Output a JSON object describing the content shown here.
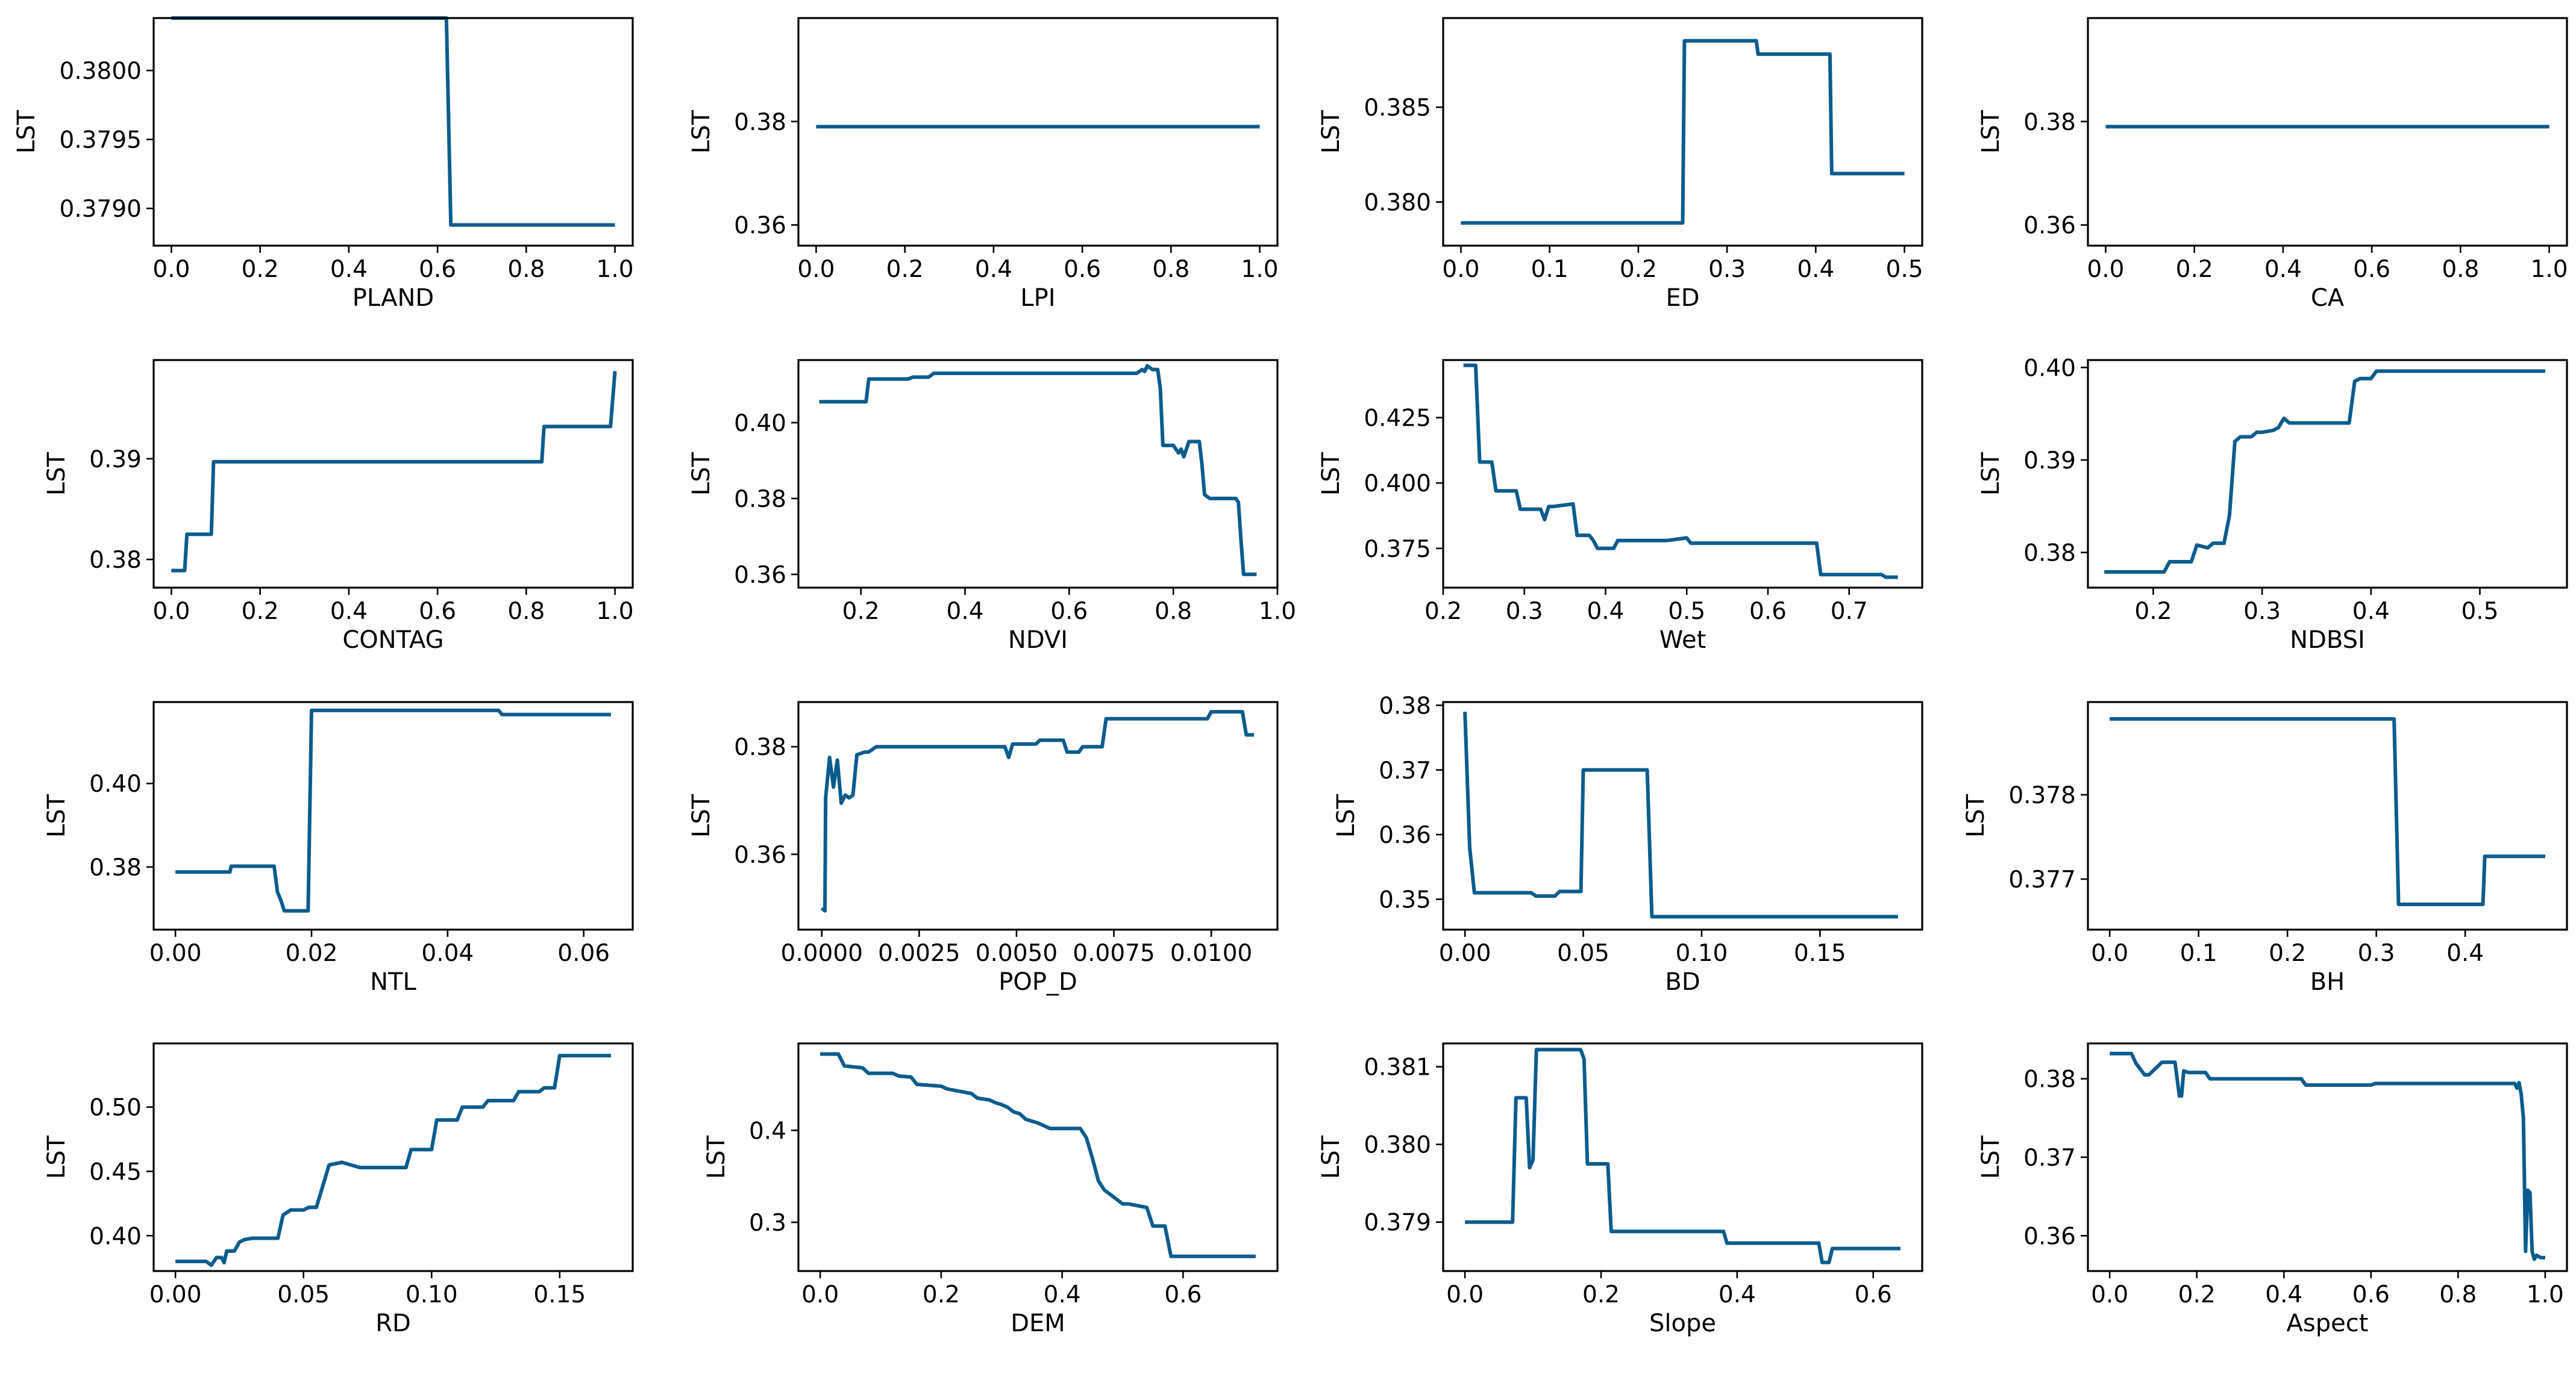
{
  "style": {
    "line_color": "#0b5c8e",
    "background": "#ffffff"
  },
  "chart_data": [
    {
      "type": "line",
      "xlabel": "PLAND",
      "ylabel": "LST",
      "xlim": [
        -0.04,
        1.04
      ],
      "ylim": [
        0.37873,
        0.38038
      ],
      "xticks": [
        0,
        0.2,
        0.4,
        0.6,
        0.8,
        1.0
      ],
      "xtick_labels": [
        "0.0",
        "0.2",
        "0.4",
        "0.6",
        "0.8",
        "1.0"
      ],
      "yticks": [
        0.379,
        0.3795,
        0.38
      ],
      "ytick_labels": [
        "0.3790",
        "0.3795",
        "0.3800"
      ],
      "x": [
        0,
        0.62,
        0.63,
        1.0
      ],
      "y": [
        0.38038,
        0.38038,
        0.37888,
        0.37888
      ]
    },
    {
      "type": "line",
      "xlabel": "LPI",
      "ylabel": "LST",
      "xlim": [
        -0.04,
        1.04
      ],
      "ylim": [
        0.356,
        0.4
      ],
      "xticks": [
        0,
        0.2,
        0.4,
        0.6,
        0.8,
        1.0
      ],
      "xtick_labels": [
        "0.0",
        "0.2",
        "0.4",
        "0.6",
        "0.8",
        "1.0"
      ],
      "yticks": [
        0.36,
        0.38
      ],
      "ytick_labels": [
        "0.36",
        "0.38"
      ],
      "x": [
        0,
        1.0
      ],
      "y": [
        0.379,
        0.379
      ]
    },
    {
      "type": "line",
      "xlabel": "ED",
      "ylabel": "LST",
      "xlim": [
        -0.02,
        0.52
      ],
      "ylim": [
        0.3777,
        0.3897
      ],
      "xticks": [
        0,
        0.1,
        0.2,
        0.3,
        0.4,
        0.5
      ],
      "xtick_labels": [
        "0.0",
        "0.1",
        "0.2",
        "0.3",
        "0.4",
        "0.5"
      ],
      "yticks": [
        0.38,
        0.385
      ],
      "ytick_labels": [
        "0.380",
        "0.385"
      ],
      "x": [
        0,
        0.25,
        0.252,
        0.333,
        0.335,
        0.416,
        0.418,
        0.5
      ],
      "y": [
        0.3789,
        0.3789,
        0.3885,
        0.3885,
        0.3878,
        0.3878,
        0.3815,
        0.3815
      ]
    },
    {
      "type": "line",
      "xlabel": "CA",
      "ylabel": "LST",
      "xlim": [
        -0.04,
        1.04
      ],
      "ylim": [
        0.356,
        0.4
      ],
      "xticks": [
        0,
        0.2,
        0.4,
        0.6,
        0.8,
        1.0
      ],
      "xtick_labels": [
        "0.0",
        "0.2",
        "0.4",
        "0.6",
        "0.8",
        "1.0"
      ],
      "yticks": [
        0.36,
        0.38
      ],
      "ytick_labels": [
        "0.36",
        "0.38"
      ],
      "x": [
        0,
        1.0
      ],
      "y": [
        0.379,
        0.379
      ]
    },
    {
      "type": "line",
      "xlabel": "CONTAG",
      "ylabel": "LST",
      "xlim": [
        -0.04,
        1.04
      ],
      "ylim": [
        0.3772,
        0.3998
      ],
      "xticks": [
        0,
        0.2,
        0.4,
        0.6,
        0.8,
        1.0
      ],
      "xtick_labels": [
        "0.0",
        "0.2",
        "0.4",
        "0.6",
        "0.8",
        "1.0"
      ],
      "yticks": [
        0.38,
        0.39
      ],
      "ytick_labels": [
        "0.38",
        "0.39"
      ],
      "x": [
        0,
        0.03,
        0.035,
        0.09,
        0.095,
        0.835,
        0.84,
        0.99,
        1.0
      ],
      "y": [
        0.3789,
        0.3789,
        0.3825,
        0.3825,
        0.3897,
        0.3897,
        0.3932,
        0.3932,
        0.3987
      ]
    },
    {
      "type": "line",
      "xlabel": "NDVI",
      "ylabel": "LST",
      "xlim": [
        0.08,
        1.0
      ],
      "ylim": [
        0.3565,
        0.4165
      ],
      "xticks": [
        0.2,
        0.4,
        0.6,
        0.8,
        1.0
      ],
      "xtick_labels": [
        "0.2",
        "0.4",
        "0.6",
        "0.8",
        "1.0"
      ],
      "yticks": [
        0.36,
        0.38,
        0.4
      ],
      "ytick_labels": [
        "0.36",
        "0.38",
        "0.40"
      ],
      "x": [
        0.12,
        0.21,
        0.215,
        0.29,
        0.3,
        0.33,
        0.34,
        0.73,
        0.74,
        0.745,
        0.75,
        0.76,
        0.77,
        0.775,
        0.78,
        0.8,
        0.81,
        0.815,
        0.82,
        0.83,
        0.84,
        0.85,
        0.855,
        0.86,
        0.87,
        0.9,
        0.91,
        0.92,
        0.925,
        0.93,
        0.935,
        0.94,
        0.96
      ],
      "y": [
        0.4055,
        0.4055,
        0.4115,
        0.4115,
        0.412,
        0.412,
        0.413,
        0.413,
        0.414,
        0.4135,
        0.415,
        0.414,
        0.414,
        0.409,
        0.394,
        0.394,
        0.392,
        0.393,
        0.391,
        0.395,
        0.395,
        0.395,
        0.389,
        0.381,
        0.38,
        0.38,
        0.38,
        0.38,
        0.379,
        0.369,
        0.36,
        0.36,
        0.36
      ]
    },
    {
      "type": "line",
      "xlabel": "Wet",
      "ylabel": "LST",
      "xlim": [
        0.2,
        0.79
      ],
      "ylim": [
        0.36,
        0.447
      ],
      "xticks": [
        0.2,
        0.3,
        0.4,
        0.5,
        0.6,
        0.7
      ],
      "xtick_labels": [
        "0.2",
        "0.3",
        "0.4",
        "0.5",
        "0.6",
        "0.7"
      ],
      "yticks": [
        0.375,
        0.4,
        0.425
      ],
      "ytick_labels": [
        "0.375",
        "0.400",
        "0.425"
      ],
      "x": [
        0.225,
        0.24,
        0.245,
        0.26,
        0.265,
        0.29,
        0.295,
        0.32,
        0.325,
        0.33,
        0.335,
        0.36,
        0.365,
        0.38,
        0.385,
        0.39,
        0.395,
        0.41,
        0.415,
        0.47,
        0.475,
        0.5,
        0.505,
        0.66,
        0.665,
        0.74,
        0.745,
        0.76
      ],
      "y": [
        0.445,
        0.445,
        0.408,
        0.408,
        0.397,
        0.397,
        0.39,
        0.39,
        0.386,
        0.391,
        0.391,
        0.392,
        0.38,
        0.38,
        0.378,
        0.375,
        0.375,
        0.375,
        0.378,
        0.378,
        0.378,
        0.379,
        0.377,
        0.377,
        0.365,
        0.365,
        0.364,
        0.364
      ]
    },
    {
      "type": "line",
      "xlabel": "NDBSI",
      "ylabel": "LST",
      "xlim": [
        0.14,
        0.58
      ],
      "ylim": [
        0.3762,
        0.4008
      ],
      "xticks": [
        0.2,
        0.3,
        0.4,
        0.5
      ],
      "xtick_labels": [
        "0.2",
        "0.3",
        "0.4",
        "0.5"
      ],
      "yticks": [
        0.38,
        0.39,
        0.4
      ],
      "ytick_labels": [
        "0.38",
        "0.39",
        "0.40"
      ],
      "x": [
        0.155,
        0.21,
        0.215,
        0.235,
        0.24,
        0.25,
        0.255,
        0.26,
        0.265,
        0.27,
        0.275,
        0.28,
        0.29,
        0.295,
        0.3,
        0.31,
        0.315,
        0.32,
        0.325,
        0.33,
        0.38,
        0.385,
        0.39,
        0.4,
        0.405,
        0.56
      ],
      "y": [
        0.3779,
        0.3779,
        0.379,
        0.379,
        0.3808,
        0.3805,
        0.381,
        0.381,
        0.381,
        0.384,
        0.392,
        0.3925,
        0.3925,
        0.393,
        0.393,
        0.3932,
        0.3935,
        0.3945,
        0.394,
        0.394,
        0.394,
        0.3985,
        0.3988,
        0.3988,
        0.3996,
        0.3996
      ]
    },
    {
      "type": "line",
      "xlabel": "NTL",
      "ylabel": "LST",
      "xlim": [
        -0.0032,
        0.0672
      ],
      "ylim": [
        0.365,
        0.4195
      ],
      "xticks": [
        0,
        0.02,
        0.04,
        0.06
      ],
      "xtick_labels": [
        "0.00",
        "0.02",
        "0.04",
        "0.06"
      ],
      "yticks": [
        0.38,
        0.4
      ],
      "ytick_labels": [
        "0.38",
        "0.40"
      ],
      "x": [
        0,
        0.008,
        0.0082,
        0.0145,
        0.015,
        0.0155,
        0.016,
        0.0195,
        0.02,
        0.0475,
        0.048,
        0.064
      ],
      "y": [
        0.3788,
        0.3788,
        0.3802,
        0.3802,
        0.374,
        0.372,
        0.3695,
        0.3695,
        0.4175,
        0.4175,
        0.4165,
        0.4165
      ]
    },
    {
      "type": "line",
      "xlabel": "POP_D",
      "ylabel": "LST",
      "xlim": [
        -0.0006,
        0.0117
      ],
      "ylim": [
        0.346,
        0.3883
      ],
      "xticks": [
        0,
        0.0025,
        0.005,
        0.0075,
        0.01
      ],
      "xtick_labels": [
        "0.0000",
        "0.0025",
        "0.0050",
        "0.0075",
        "0.0100"
      ],
      "yticks": [
        0.36,
        0.38
      ],
      "ytick_labels": [
        "0.36",
        "0.38"
      ],
      "x": [
        0,
        8e-05,
        0.0001,
        0.0002,
        0.0003,
        0.0004,
        0.0005,
        0.0006,
        0.0007,
        0.0008,
        0.0009,
        0.0011,
        0.0012,
        0.0014,
        0.0015,
        0.0017,
        0.0047,
        0.0048,
        0.0049,
        0.0055,
        0.0056,
        0.0062,
        0.0063,
        0.0066,
        0.0067,
        0.0072,
        0.0073,
        0.0099,
        0.01,
        0.0108,
        0.0109,
        0.0111
      ],
      "y": [
        0.35,
        0.3495,
        0.3705,
        0.378,
        0.3725,
        0.3775,
        0.3695,
        0.371,
        0.3705,
        0.371,
        0.3785,
        0.379,
        0.379,
        0.38,
        0.38,
        0.38,
        0.38,
        0.378,
        0.3805,
        0.3805,
        0.3812,
        0.3812,
        0.379,
        0.379,
        0.38,
        0.38,
        0.3852,
        0.3852,
        0.3865,
        0.3865,
        0.3822,
        0.3822
      ]
    },
    {
      "type": "line",
      "xlabel": "BD",
      "ylabel": "LST",
      "xlim": [
        -0.0092,
        0.1932
      ],
      "ylim": [
        0.3453,
        0.3805
      ],
      "xticks": [
        0,
        0.05,
        0.1,
        0.15
      ],
      "xtick_labels": [
        "0.00",
        "0.05",
        "0.10",
        "0.15"
      ],
      "yticks": [
        0.35,
        0.36,
        0.37,
        0.38
      ],
      "ytick_labels": [
        "0.35",
        "0.36",
        "0.37",
        "0.38"
      ],
      "x": [
        0,
        0.002,
        0.004,
        0.028,
        0.03,
        0.038,
        0.04,
        0.049,
        0.05,
        0.077,
        0.079,
        0.183
      ],
      "y": [
        0.379,
        0.358,
        0.351,
        0.351,
        0.3505,
        0.3505,
        0.3512,
        0.3512,
        0.37,
        0.37,
        0.3473,
        0.3473
      ]
    },
    {
      "type": "line",
      "xlabel": "BH",
      "ylabel": "LST",
      "xlim": [
        -0.0245,
        0.5145
      ],
      "ylim": [
        0.3764,
        0.3791
      ],
      "xticks": [
        0,
        0.1,
        0.2,
        0.3,
        0.4
      ],
      "xtick_labels": [
        "0.0",
        "0.1",
        "0.2",
        "0.3",
        "0.4"
      ],
      "yticks": [
        0.377,
        0.378
      ],
      "ytick_labels": [
        "0.377",
        "0.378"
      ],
      "x": [
        0,
        0.32,
        0.325,
        0.42,
        0.422,
        0.49
      ],
      "y": [
        0.3789,
        0.3789,
        0.3767,
        0.3767,
        0.37727,
        0.37727
      ]
    },
    {
      "type": "line",
      "xlabel": "RD",
      "ylabel": "LST",
      "xlim": [
        -0.0085,
        0.1785
      ],
      "ylim": [
        0.3725,
        0.5495
      ],
      "xticks": [
        0,
        0.05,
        0.1,
        0.15
      ],
      "xtick_labels": [
        "0.00",
        "0.05",
        "0.10",
        "0.15"
      ],
      "yticks": [
        0.4,
        0.45,
        0.5
      ],
      "ytick_labels": [
        "0.40",
        "0.45",
        "0.50"
      ],
      "x": [
        0,
        0.012,
        0.014,
        0.016,
        0.018,
        0.019,
        0.02,
        0.023,
        0.025,
        0.027,
        0.03,
        0.04,
        0.042,
        0.045,
        0.05,
        0.052,
        0.055,
        0.06,
        0.065,
        0.072,
        0.09,
        0.092,
        0.1,
        0.102,
        0.11,
        0.112,
        0.12,
        0.122,
        0.132,
        0.134,
        0.142,
        0.144,
        0.148,
        0.15,
        0.17
      ],
      "y": [
        0.38,
        0.38,
        0.377,
        0.383,
        0.383,
        0.379,
        0.388,
        0.388,
        0.395,
        0.397,
        0.398,
        0.398,
        0.416,
        0.42,
        0.42,
        0.422,
        0.422,
        0.455,
        0.457,
        0.453,
        0.453,
        0.467,
        0.467,
        0.49,
        0.49,
        0.5,
        0.5,
        0.505,
        0.505,
        0.512,
        0.512,
        0.515,
        0.515,
        0.54,
        0.54
      ]
    },
    {
      "type": "line",
      "xlabel": "DEM",
      "ylabel": "LST",
      "xlim": [
        -0.036,
        0.756
      ],
      "ylim": [
        0.247,
        0.4945
      ],
      "xticks": [
        0,
        0.2,
        0.4,
        0.6
      ],
      "xtick_labels": [
        "0.0",
        "0.2",
        "0.4",
        "0.6"
      ],
      "yticks": [
        0.3,
        0.4
      ],
      "ytick_labels": [
        "0.3",
        "0.4"
      ],
      "x": [
        0,
        0.03,
        0.04,
        0.07,
        0.08,
        0.12,
        0.13,
        0.15,
        0.16,
        0.2,
        0.21,
        0.25,
        0.26,
        0.28,
        0.29,
        0.3,
        0.31,
        0.32,
        0.33,
        0.34,
        0.35,
        0.36,
        0.37,
        0.38,
        0.43,
        0.44,
        0.45,
        0.46,
        0.47,
        0.48,
        0.5,
        0.51,
        0.54,
        0.55,
        0.57,
        0.58,
        0.72
      ],
      "y": [
        0.483,
        0.483,
        0.47,
        0.468,
        0.462,
        0.462,
        0.459,
        0.458,
        0.45,
        0.448,
        0.445,
        0.44,
        0.435,
        0.433,
        0.43,
        0.428,
        0.425,
        0.42,
        0.418,
        0.412,
        0.41,
        0.408,
        0.405,
        0.402,
        0.402,
        0.392,
        0.37,
        0.345,
        0.335,
        0.33,
        0.32,
        0.32,
        0.316,
        0.296,
        0.296,
        0.263,
        0.263
      ]
    },
    {
      "type": "line",
      "xlabel": "Slope",
      "ylabel": "LST",
      "xlim": [
        -0.032,
        0.672
      ],
      "ylim": [
        0.37837,
        0.3813
      ],
      "xticks": [
        0,
        0.2,
        0.4,
        0.6
      ],
      "xtick_labels": [
        "0.0",
        "0.2",
        "0.4",
        "0.6"
      ],
      "yticks": [
        0.379,
        0.38,
        0.381
      ],
      "ytick_labels": [
        "0.379",
        "0.380",
        "0.381"
      ],
      "x": [
        0,
        0.07,
        0.075,
        0.09,
        0.095,
        0.1,
        0.105,
        0.17,
        0.175,
        0.18,
        0.21,
        0.215,
        0.38,
        0.385,
        0.52,
        0.525,
        0.535,
        0.54,
        0.64
      ],
      "y": [
        0.379,
        0.379,
        0.3806,
        0.3806,
        0.3797,
        0.3798,
        0.38122,
        0.38122,
        0.3811,
        0.37975,
        0.37975,
        0.37888,
        0.37888,
        0.37873,
        0.37873,
        0.37848,
        0.37848,
        0.37866,
        0.37866
      ]
    },
    {
      "type": "line",
      "xlabel": "Aspect",
      "ylabel": "LST",
      "xlim": [
        -0.05,
        1.05
      ],
      "ylim": [
        0.3555,
        0.3845
      ],
      "xticks": [
        0,
        0.2,
        0.4,
        0.6,
        0.8,
        1.0
      ],
      "xtick_labels": [
        "0.0",
        "0.2",
        "0.4",
        "0.6",
        "0.8",
        "1.0"
      ],
      "yticks": [
        0.36,
        0.37,
        0.38
      ],
      "ytick_labels": [
        "0.36",
        "0.37",
        "0.38"
      ],
      "x": [
        0,
        0.05,
        0.06,
        0.08,
        0.09,
        0.12,
        0.13,
        0.15,
        0.16,
        0.165,
        0.17,
        0.18,
        0.22,
        0.23,
        0.44,
        0.45,
        0.6,
        0.61,
        0.93,
        0.935,
        0.94,
        0.945,
        0.95,
        0.955,
        0.96,
        0.965,
        0.97,
        0.975,
        0.98,
        0.99,
        1.0
      ],
      "y": [
        0.3832,
        0.3832,
        0.382,
        0.3805,
        0.3805,
        0.3821,
        0.3821,
        0.3821,
        0.3778,
        0.3778,
        0.381,
        0.3808,
        0.3808,
        0.38,
        0.38,
        0.3792,
        0.3792,
        0.3794,
        0.3794,
        0.3788,
        0.3795,
        0.378,
        0.375,
        0.358,
        0.3658,
        0.3655,
        0.358,
        0.357,
        0.3575,
        0.3572,
        0.3572
      ]
    }
  ]
}
